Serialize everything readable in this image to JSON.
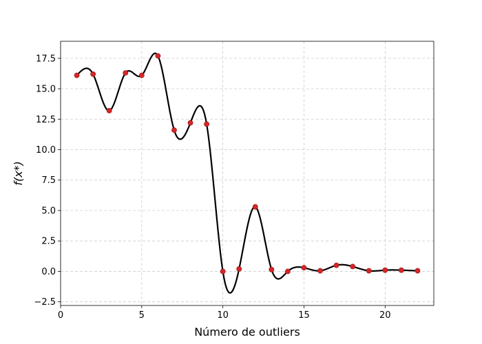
{
  "chart_data": {
    "type": "line",
    "xlabel": "Número de outliers",
    "ylabel": "f(x*)",
    "xlim": [
      0,
      23
    ],
    "ylim": [
      -2.8,
      18.9
    ],
    "grid": true,
    "xticks": [
      0,
      5,
      10,
      15,
      20
    ],
    "xtick_labels": [
      "0",
      "5",
      "10",
      "15",
      "20"
    ],
    "yticks": [
      -2.5,
      0.0,
      2.5,
      5.0,
      7.5,
      10.0,
      12.5,
      15.0,
      17.5
    ],
    "ytick_labels": [
      "−2.5",
      "0.0",
      "2.5",
      "5.0",
      "7.5",
      "10.0",
      "12.5",
      "15.0",
      "17.5"
    ],
    "series": [
      {
        "kind": "points",
        "color": "#d62728",
        "x": [
          1,
          2,
          3,
          4,
          5,
          6,
          7,
          8,
          9,
          10,
          11,
          12,
          13,
          14,
          15,
          16,
          17,
          18,
          19,
          20,
          21,
          22
        ],
        "y": [
          16.1,
          16.2,
          13.2,
          16.3,
          16.1,
          17.7,
          11.6,
          12.2,
          12.1,
          0.0,
          0.2,
          5.3,
          0.15,
          0.0,
          0.3,
          0.05,
          0.5,
          0.4,
          0.05,
          0.1,
          0.1,
          0.05
        ]
      },
      {
        "kind": "curve",
        "color": "#000000",
        "description": "smooth interpolating spline through the points"
      }
    ]
  }
}
